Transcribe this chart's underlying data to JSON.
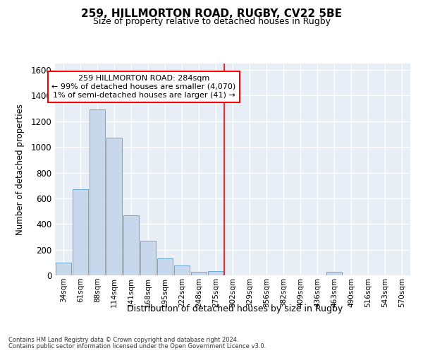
{
  "title1": "259, HILLMORTON ROAD, RUGBY, CV22 5BE",
  "title2": "Size of property relative to detached houses in Rugby",
  "xlabel": "Distribution of detached houses by size in Rugby",
  "ylabel": "Number of detached properties",
  "categories": [
    "34sqm",
    "61sqm",
    "88sqm",
    "114sqm",
    "141sqm",
    "168sqm",
    "195sqm",
    "222sqm",
    "248sqm",
    "275sqm",
    "302sqm",
    "329sqm",
    "356sqm",
    "382sqm",
    "409sqm",
    "436sqm",
    "463sqm",
    "490sqm",
    "516sqm",
    "543sqm",
    "570sqm"
  ],
  "values": [
    100,
    670,
    1290,
    1070,
    465,
    268,
    130,
    75,
    30,
    35,
    0,
    0,
    0,
    0,
    0,
    0,
    25,
    0,
    0,
    0,
    0
  ],
  "bar_color": "#c8d8ec",
  "bar_edge_color": "#6aaad4",
  "vline_color": "red",
  "vline_x": 9.5,
  "annotation_text": "259 HILLMORTON ROAD: 284sqm\n← 99% of detached houses are smaller (4,070)\n1% of semi-detached houses are larger (41) →",
  "annotation_box_color": "white",
  "annotation_box_edge": "red",
  "ylim": [
    0,
    1650
  ],
  "yticks": [
    0,
    200,
    400,
    600,
    800,
    1000,
    1200,
    1400,
    1600
  ],
  "bg_color": "#e8eef5",
  "footer1": "Contains HM Land Registry data © Crown copyright and database right 2024.",
  "footer2": "Contains public sector information licensed under the Open Government Licence v3.0."
}
